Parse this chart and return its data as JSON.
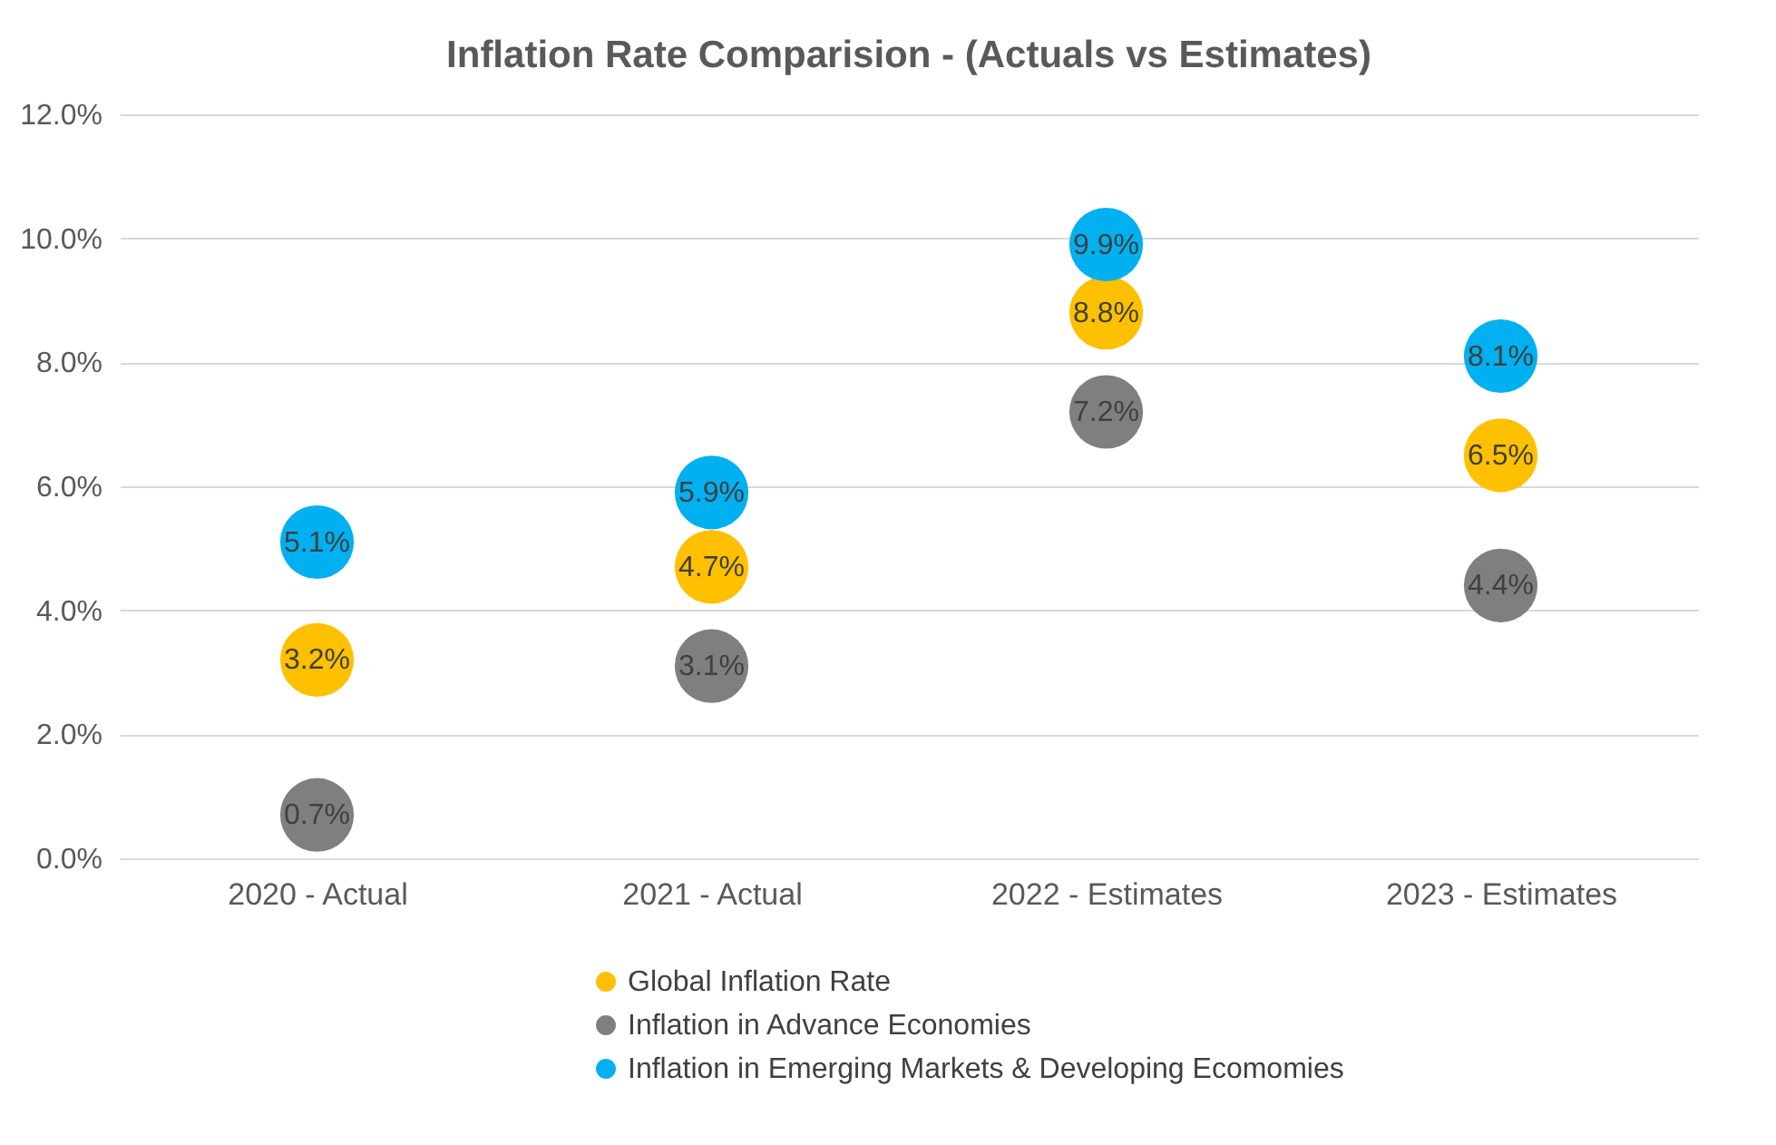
{
  "chart_data": {
    "type": "scatter",
    "title": "Inflation Rate Comparision - (Actuals vs Estimates)",
    "categories": [
      "2020 - Actual",
      "2021 - Actual",
      "2022 - Estimates",
      "2023 - Estimates"
    ],
    "series": [
      {
        "name": "Global Inflation Rate",
        "color": "#ffc000",
        "values": [
          3.2,
          4.7,
          8.8,
          6.5
        ],
        "value_labels": [
          "3.2%",
          "4.7%",
          "8.8%",
          "6.5%"
        ]
      },
      {
        "name": "Inflation in Advance Economies",
        "color": "#7f7f7f",
        "values": [
          0.7,
          3.1,
          7.2,
          4.4
        ],
        "value_labels": [
          "0.7%",
          "3.1%",
          "7.2%",
          "4.4%"
        ]
      },
      {
        "name": "Inflation in Emerging Markets & Developing Ecomomies",
        "color": "#00b0f0",
        "values": [
          5.1,
          5.9,
          9.9,
          8.1
        ],
        "value_labels": [
          "5.1%",
          "5.9%",
          "9.9%",
          "8.1%"
        ]
      }
    ],
    "ylim": [
      0,
      12
    ],
    "yticks": [
      {
        "value": 0,
        "label": "0.0%"
      },
      {
        "value": 2,
        "label": "2.0%"
      },
      {
        "value": 4,
        "label": "4.0%"
      },
      {
        "value": 6,
        "label": "6.0%"
      },
      {
        "value": 8,
        "label": "8.0%"
      },
      {
        "value": 10,
        "label": "10.0%"
      },
      {
        "value": 12,
        "label": "12.0%"
      }
    ],
    "grid": "y",
    "legend": "bottom",
    "marker": "circle"
  }
}
